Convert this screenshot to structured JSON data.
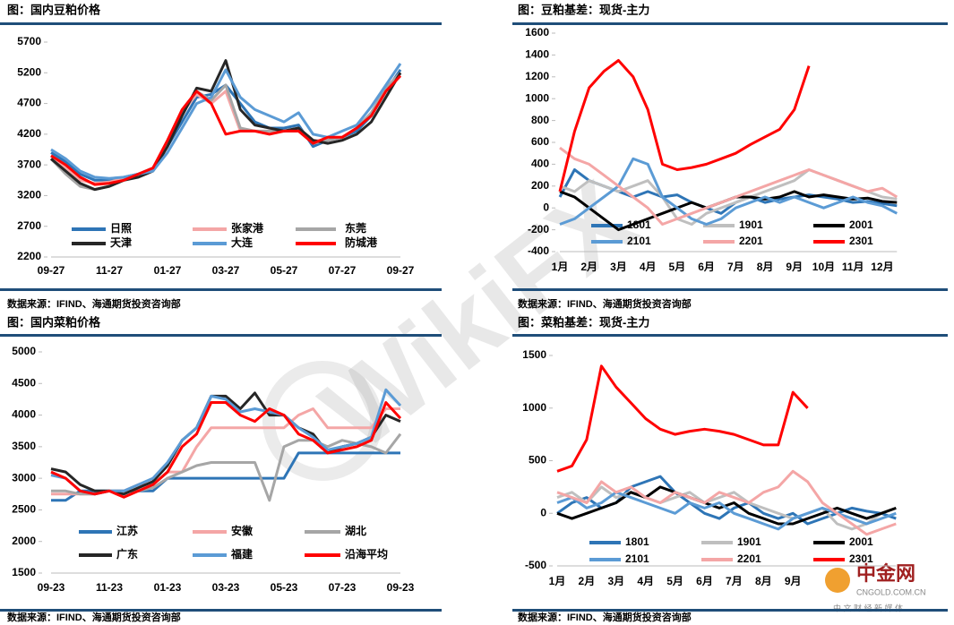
{
  "chart_data": [
    {
      "type": "line",
      "title": "图：国内豆粕价格",
      "source": "数据来源：IFIND、海通期货投资咨询部",
      "categories": [
        "09-27",
        null,
        null,
        null,
        "11-27",
        null,
        null,
        null,
        "01-27",
        null,
        null,
        null,
        "03-27",
        null,
        null,
        null,
        "05-27",
        null,
        null,
        null,
        "07-27",
        null,
        null,
        null,
        "09-27"
      ],
      "ylim": [
        2200,
        5700
      ],
      "yticks": [
        2200,
        2700,
        3200,
        3700,
        4200,
        4700,
        5200,
        5700
      ],
      "series": [
        {
          "name": "日照",
          "color": "#2e75b6",
          "values": [
            3900,
            3750,
            3550,
            3450,
            3450,
            3500,
            3550,
            3650,
            4000,
            4400,
            4800,
            4850,
            5000,
            4700,
            4400,
            4300,
            4300,
            4350,
            4000,
            4100,
            4150,
            4250,
            4500,
            4900,
            5250
          ]
        },
        {
          "name": "张家港",
          "color": "#f4a6a6",
          "values": [
            3850,
            3650,
            3450,
            3400,
            3420,
            3480,
            3550,
            3650,
            4050,
            4550,
            4850,
            4700,
            4900,
            4250,
            4250,
            4250,
            4250,
            4300,
            4100,
            4100,
            4150,
            4300,
            4550,
            4950,
            5200
          ]
        },
        {
          "name": "东莞",
          "color": "#a6a6a6",
          "values": [
            3800,
            3550,
            3350,
            3300,
            3350,
            3450,
            3550,
            3650,
            4050,
            4550,
            4900,
            4750,
            5000,
            4300,
            4250,
            4250,
            4250,
            4250,
            4050,
            4100,
            4150,
            4300,
            4550,
            4950,
            5200
          ]
        },
        {
          "name": "天津",
          "color": "#262626",
          "values": [
            3800,
            3600,
            3400,
            3300,
            3350,
            3450,
            3500,
            3600,
            4000,
            4500,
            4950,
            4900,
            5400,
            4600,
            4350,
            4300,
            4250,
            4300,
            4100,
            4050,
            4100,
            4200,
            4400,
            4800,
            5200
          ]
        },
        {
          "name": "大连",
          "color": "#5b9bd5",
          "values": [
            3950,
            3800,
            3600,
            3500,
            3480,
            3500,
            3550,
            3600,
            3900,
            4300,
            4700,
            4800,
            5250,
            4800,
            4600,
            4500,
            4400,
            4550,
            4200,
            4150,
            4250,
            4350,
            4650,
            5000,
            5350
          ]
        },
        {
          "name": "防城港",
          "color": "#ff0000",
          "values": [
            3850,
            3700,
            3500,
            3380,
            3400,
            3450,
            3550,
            3650,
            4100,
            4600,
            4900,
            4700,
            4200,
            4250,
            4250,
            4200,
            4250,
            4250,
            4050,
            4150,
            4150,
            4300,
            4500,
            4900,
            5150
          ]
        }
      ]
    },
    {
      "type": "line",
      "title": "图：豆粕基差：现货-主力",
      "source": "数据来源：IFIND、海通期货投资咨询部",
      "categories": [
        "1月",
        null,
        "2月",
        null,
        "3月",
        null,
        "4月",
        null,
        "5月",
        null,
        "6月",
        null,
        "7月",
        null,
        "8月",
        null,
        "9月",
        null,
        "10月",
        null,
        "11月",
        null,
        "12月",
        null
      ],
      "ylim": [
        -400,
        1600
      ],
      "yticks": [
        -400,
        -200,
        0,
        200,
        400,
        600,
        800,
        1000,
        1200,
        1400,
        1600
      ],
      "series": [
        {
          "name": "1801",
          "color": "#2e75b6",
          "values": [
            100,
            350,
            250,
            200,
            150,
            100,
            150,
            100,
            120,
            50,
            0,
            -50,
            50,
            100,
            50,
            80,
            100,
            120,
            100,
            80,
            50,
            60,
            40,
            20
          ]
        },
        {
          "name": "1901",
          "color": "#bfbfbf",
          "values": [
            200,
            150,
            250,
            200,
            150,
            200,
            250,
            100,
            -100,
            -150,
            -50,
            0,
            50,
            100,
            150,
            200,
            250,
            350,
            300,
            250,
            200,
            150,
            100,
            80
          ]
        },
        {
          "name": "2001",
          "color": "#000000",
          "values": [
            150,
            100,
            0,
            -100,
            -200,
            -150,
            -100,
            -50,
            0,
            50,
            0,
            50,
            100,
            100,
            80,
            100,
            150,
            100,
            120,
            100,
            80,
            90,
            60,
            50
          ]
        },
        {
          "name": "2101",
          "color": "#5b9bd5",
          "values": [
            -150,
            -100,
            0,
            100,
            200,
            450,
            400,
            100,
            0,
            -100,
            -150,
            -100,
            0,
            50,
            100,
            50,
            100,
            50,
            0,
            50,
            100,
            50,
            20,
            -50
          ]
        },
        {
          "name": "2201",
          "color": "#f4a6a6",
          "values": [
            550,
            450,
            400,
            300,
            200,
            100,
            0,
            -150,
            -100,
            -50,
            0,
            50,
            100,
            150,
            200,
            250,
            300,
            350,
            300,
            250,
            200,
            150,
            180,
            100
          ]
        },
        {
          "name": "2301",
          "color": "#ff0000",
          "values": [
            150,
            700,
            1100,
            1250,
            1350,
            1200,
            900,
            400,
            350,
            370,
            400,
            450,
            500,
            580,
            650,
            720,
            900,
            1300,
            null,
            null,
            null,
            null,
            null,
            null
          ]
        }
      ]
    },
    {
      "type": "line",
      "title": "图：国内菜粕价格",
      "source": "数据来源：IFIND、海通期货投资咨询部",
      "categories": [
        "09-23",
        null,
        null,
        null,
        "11-23",
        null,
        null,
        null,
        "01-23",
        null,
        null,
        null,
        "03-23",
        null,
        null,
        null,
        "05-23",
        null,
        null,
        null,
        "07-23",
        null,
        null,
        null,
        "09-23"
      ],
      "ylim": [
        1500,
        5000
      ],
      "yticks": [
        1500,
        2000,
        2500,
        3000,
        3500,
        4000,
        4500,
        5000
      ],
      "series": [
        {
          "name": "江苏",
          "color": "#2e75b6",
          "values": [
            2650,
            2650,
            2800,
            2800,
            2800,
            2800,
            2800,
            2800,
            3000,
            3000,
            3000,
            3000,
            3000,
            3000,
            3000,
            3000,
            3000,
            3400,
            3400,
            3400,
            3400,
            3400,
            3400,
            3400,
            3400
          ]
        },
        {
          "name": "安徽",
          "color": "#f4a6a6",
          "values": [
            2750,
            2750,
            2750,
            2750,
            2800,
            2800,
            2900,
            2900,
            3100,
            3100,
            3500,
            3800,
            3800,
            3800,
            3800,
            3800,
            3800,
            4000,
            4100,
            3800,
            3800,
            3800,
            3800,
            4100,
            4100
          ]
        },
        {
          "name": "湖北",
          "color": "#a6a6a6",
          "values": [
            2800,
            2800,
            2750,
            2750,
            2800,
            2800,
            2800,
            2850,
            3000,
            3100,
            3200,
            3250,
            3250,
            3250,
            3250,
            2650,
            3500,
            3600,
            3600,
            3500,
            3600,
            3550,
            3500,
            3400,
            3700
          ]
        },
        {
          "name": "广东",
          "color": "#262626",
          "values": [
            3150,
            3100,
            2900,
            2800,
            2800,
            2750,
            2850,
            2950,
            3200,
            3600,
            3800,
            4300,
            4300,
            4100,
            4350,
            4000,
            4000,
            3800,
            3700,
            3400,
            3500,
            3550,
            3650,
            4000,
            3900
          ]
        },
        {
          "name": "福建",
          "color": "#5b9bd5",
          "values": [
            3050,
            3000,
            2800,
            2750,
            2800,
            2800,
            2900,
            3000,
            3250,
            3600,
            3800,
            4300,
            4250,
            4050,
            4100,
            4050,
            4000,
            3800,
            3650,
            3450,
            3500,
            3550,
            3650,
            4400,
            4150
          ]
        },
        {
          "name": "沿海平均",
          "color": "#ff0000",
          "values": [
            3100,
            3000,
            2800,
            2750,
            2800,
            2700,
            2800,
            2900,
            3100,
            3500,
            3700,
            4200,
            4200,
            4000,
            3900,
            4100,
            4000,
            3700,
            3600,
            3400,
            3450,
            3500,
            3600,
            4200,
            3950
          ]
        }
      ]
    },
    {
      "type": "line",
      "title": "图：菜粕基差：现货-主力",
      "source": "数据来源：IFIND、海通期货投资咨询部",
      "categories": [
        "1月",
        null,
        "2月",
        null,
        "3月",
        null,
        "4月",
        null,
        "5月",
        null,
        "6月",
        null,
        "7月",
        null,
        "8月",
        null,
        "9月",
        null,
        null,
        null,
        null,
        null,
        null,
        null
      ],
      "ylim": [
        -500,
        1500
      ],
      "yticks": [
        -500,
        0,
        500,
        1000,
        1500
      ],
      "series": [
        {
          "name": "1801",
          "color": "#2e75b6",
          "values": [
            0,
            100,
            150,
            50,
            100,
            250,
            300,
            350,
            200,
            100,
            0,
            -50,
            50,
            100,
            0,
            -50,
            0,
            -100,
            -50,
            0,
            50,
            20,
            0,
            -50
          ]
        },
        {
          "name": "1901",
          "color": "#bfbfbf",
          "values": [
            150,
            200,
            100,
            250,
            150,
            200,
            150,
            100,
            150,
            200,
            100,
            150,
            200,
            100,
            50,
            0,
            -50,
            0,
            50,
            -100,
            -150,
            -100,
            0,
            50
          ]
        },
        {
          "name": "2001",
          "color": "#000000",
          "values": [
            0,
            -50,
            0,
            50,
            100,
            200,
            150,
            250,
            200,
            150,
            100,
            50,
            100,
            0,
            -50,
            -100,
            -100,
            -50,
            0,
            50,
            0,
            -50,
            0,
            50
          ]
        },
        {
          "name": "2101",
          "color": "#5b9bd5",
          "values": [
            100,
            150,
            50,
            100,
            200,
            150,
            100,
            50,
            0,
            100,
            50,
            100,
            0,
            -50,
            -100,
            -150,
            -50,
            0,
            50,
            0,
            -50,
            -100,
            -50,
            0
          ]
        },
        {
          "name": "2201",
          "color": "#f4a6a6",
          "values": [
            200,
            150,
            100,
            300,
            200,
            250,
            150,
            100,
            200,
            150,
            100,
            200,
            150,
            100,
            200,
            250,
            400,
            300,
            100,
            0,
            -100,
            -200,
            -150,
            -100
          ]
        },
        {
          "name": "2301",
          "color": "#ff0000",
          "values": [
            400,
            450,
            700,
            1400,
            1200,
            1050,
            900,
            800,
            750,
            780,
            800,
            780,
            750,
            700,
            650,
            650,
            1150,
            1000,
            null,
            null,
            null,
            null,
            null,
            null
          ]
        }
      ]
    }
  ],
  "watermark": {
    "brand": "WikiFX",
    "logo": "中金网",
    "url": "CNGOLD.COM.CN",
    "tagline": "中 文 财 经 新 媒 体"
  }
}
